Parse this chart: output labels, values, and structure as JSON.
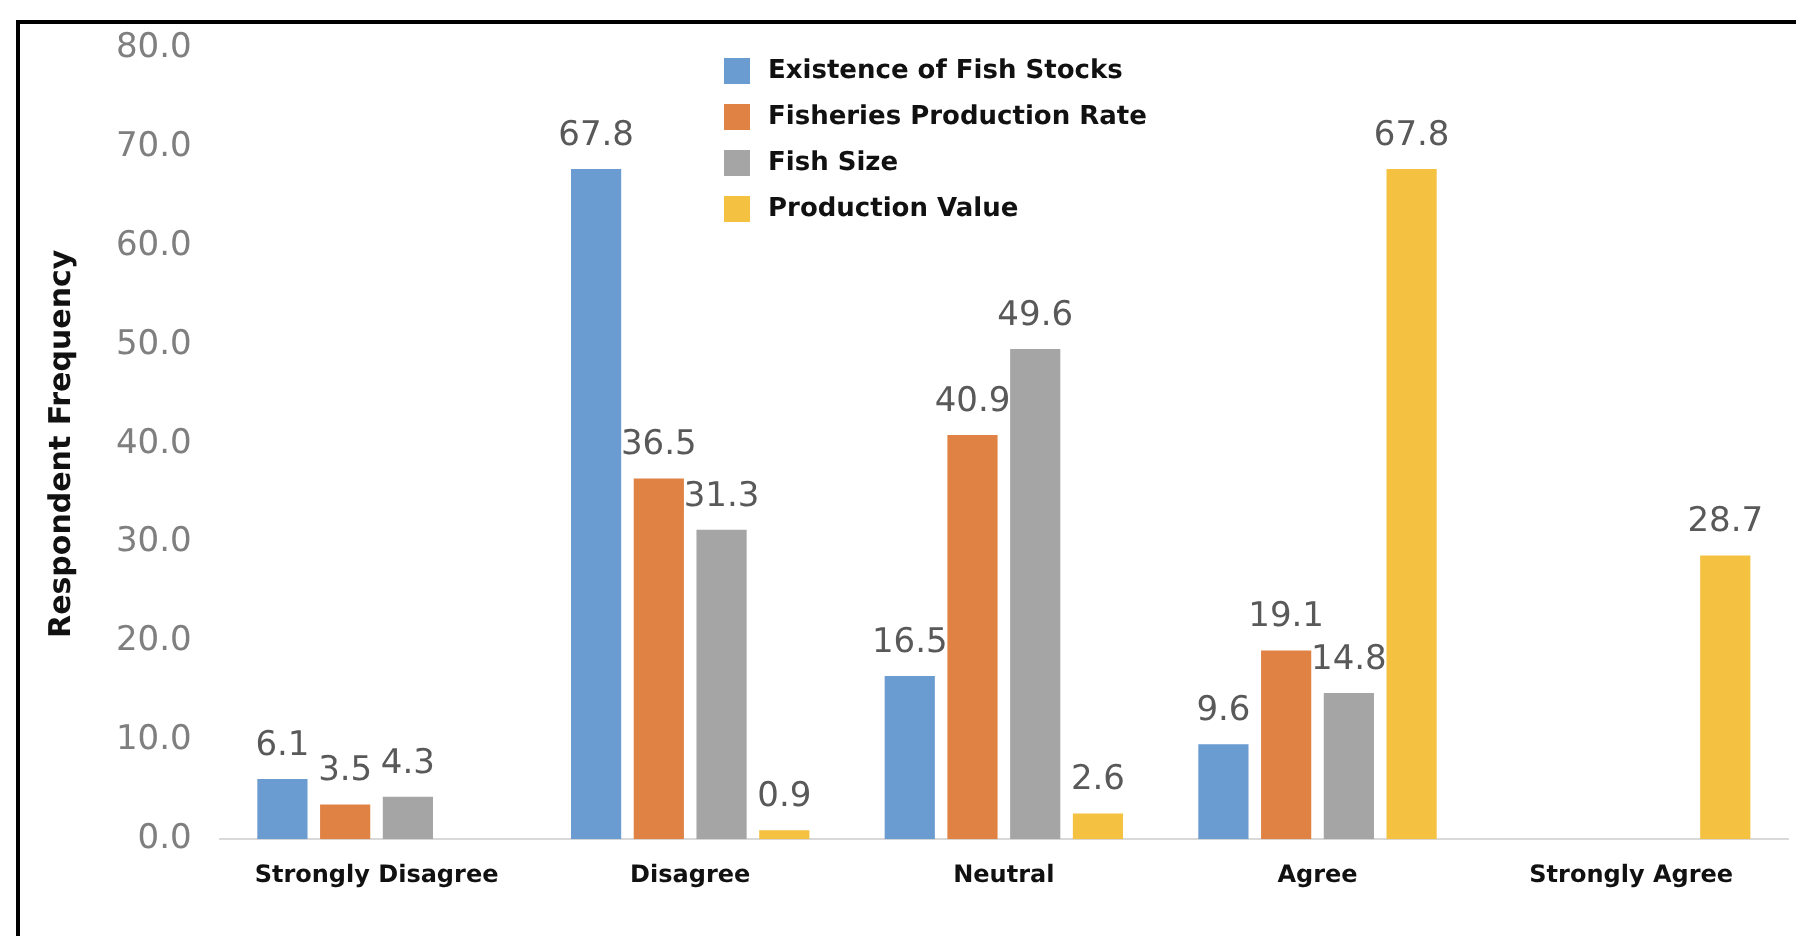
{
  "chart_data": {
    "type": "bar",
    "ylabel": "Respondent Frequency",
    "categories": [
      "Strongly Disagree",
      "Disagree",
      "Neutral",
      "Agree",
      "Strongly Agree"
    ],
    "series": [
      {
        "name": "Existence of Fish Stocks",
        "color": "#6a9bd1",
        "values": [
          6.1,
          67.8,
          16.5,
          9.6,
          null
        ]
      },
      {
        "name": "Fisheries Production Rate",
        "color": "#e08244",
        "values": [
          3.5,
          36.5,
          40.9,
          19.1,
          null
        ]
      },
      {
        "name": "Fish Size",
        "color": "#a5a5a5",
        "values": [
          4.3,
          31.3,
          49.6,
          14.8,
          null
        ]
      },
      {
        "name": "Production Value",
        "color": "#f4c141",
        "values": [
          null,
          0.9,
          2.6,
          67.8,
          28.7
        ]
      }
    ],
    "ylim": [
      0,
      80
    ],
    "yticks": [
      {
        "value": 0,
        "label": "0.0"
      },
      {
        "value": 10,
        "label": "10.0"
      },
      {
        "value": 20,
        "label": "20.0"
      },
      {
        "value": 30,
        "label": "30.0"
      },
      {
        "value": 40,
        "label": "40.0"
      },
      {
        "value": 50,
        "label": "50.0"
      },
      {
        "value": 60,
        "label": "60.0"
      },
      {
        "value": 70,
        "label": "70.0"
      },
      {
        "value": 80,
        "label": "80.0"
      }
    ],
    "grid": false,
    "legend": "top",
    "data_labels": true
  }
}
